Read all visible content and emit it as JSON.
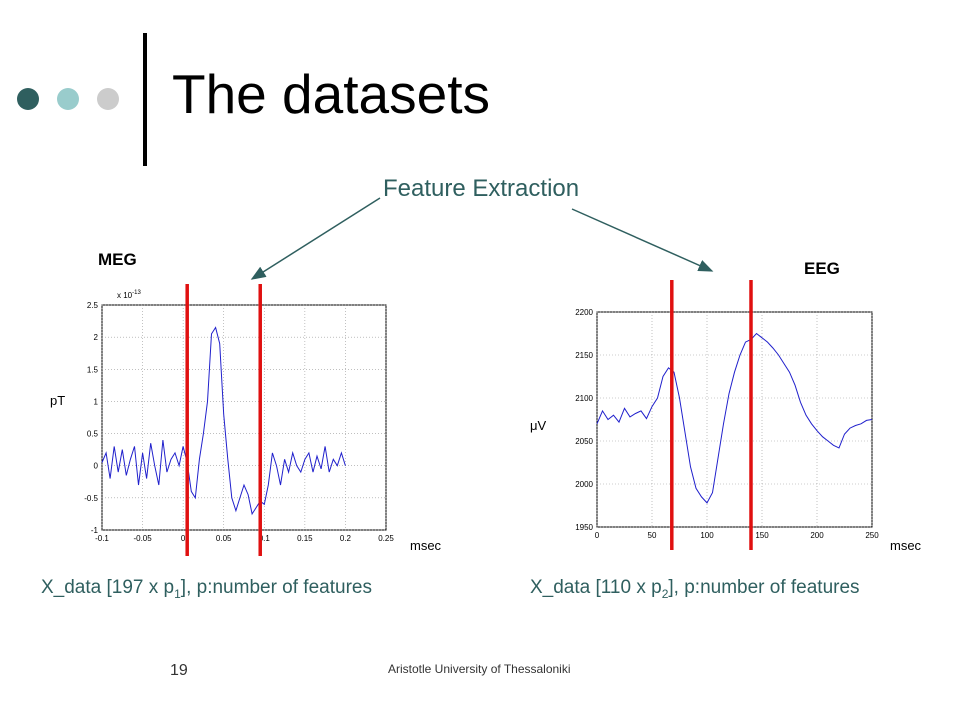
{
  "slide": {
    "title": "The datasets",
    "feature_label": "Feature Extraction",
    "footer": "Aristotle University of Thessaloniki",
    "page_number": "19",
    "colors": {
      "accent": "#2f5f5f",
      "dot1": "#2f5f5f",
      "dot2": "#99cccc",
      "dot3": "#cccccc",
      "marker": "#e01010",
      "trace": "#2020cc"
    }
  },
  "meg": {
    "label": "MEG",
    "unit": "pT",
    "xunit": "msec",
    "caption_pre": "X_data [197 x p",
    "caption_sub": "1",
    "caption_post": "], p:number of features",
    "scale_note": "x 10",
    "scale_exp": "-13"
  },
  "eeg": {
    "label": "EEG",
    "unit": "μV",
    "xunit": "msec",
    "caption_pre": "X_data [110 x p",
    "caption_sub": "2",
    "caption_post": "], p:number of features"
  },
  "chart_data": [
    {
      "type": "line",
      "title": "",
      "xlim": [
        -0.1,
        0.25
      ],
      "ylim": [
        -1,
        2.5
      ],
      "xticks": [
        "-0.1",
        "-0.05",
        "0",
        "0.05",
        "0.1",
        "0.15",
        "0.2",
        "0.25"
      ],
      "yticks": [
        "-1",
        "-0.5",
        "0",
        "0.5",
        "1",
        "1.5",
        "2",
        "2.5"
      ],
      "grid": true,
      "markers_x": [
        0.005,
        0.095
      ],
      "series": [
        {
          "x": [
            -0.1,
            -0.095,
            -0.09,
            -0.085,
            -0.08,
            -0.075,
            -0.07,
            -0.065,
            -0.06,
            -0.055,
            -0.05,
            -0.045,
            -0.04,
            -0.035,
            -0.03,
            -0.025,
            -0.02,
            -0.015,
            -0.01,
            -0.005,
            0,
            0.005,
            0.01,
            0.015,
            0.02,
            0.025,
            0.03,
            0.035,
            0.04,
            0.045,
            0.05,
            0.055,
            0.06,
            0.065,
            0.07,
            0.075,
            0.08,
            0.085,
            0.09,
            0.095,
            0.1,
            0.105,
            0.11,
            0.115,
            0.12,
            0.125,
            0.13,
            0.135,
            0.14,
            0.145,
            0.15,
            0.155,
            0.16,
            0.165,
            0.17,
            0.175,
            0.18,
            0.185,
            0.19,
            0.195,
            0.2
          ],
          "values": [
            0.05,
            0.2,
            -0.2,
            0.3,
            -0.1,
            0.25,
            -0.15,
            0.1,
            0.3,
            -0.3,
            0.2,
            -0.2,
            0.35,
            0.0,
            -0.3,
            0.4,
            -0.1,
            0.1,
            0.2,
            0.0,
            0.3,
            0.05,
            -0.4,
            -0.5,
            0.1,
            0.5,
            1.0,
            2.05,
            2.15,
            1.9,
            0.8,
            0.1,
            -0.5,
            -0.7,
            -0.5,
            -0.3,
            -0.45,
            -0.75,
            -0.65,
            -0.55,
            -0.6,
            -0.3,
            0.2,
            0.0,
            -0.3,
            0.1,
            -0.1,
            0.2,
            0.0,
            -0.1,
            0.1,
            0.2,
            -0.1,
            0.15,
            -0.05,
            0.3,
            -0.1,
            0.1,
            0.0,
            0.2,
            0.0
          ]
        }
      ]
    },
    {
      "type": "line",
      "title": "",
      "xlim": [
        0,
        250
      ],
      "ylim": [
        1950,
        2200
      ],
      "xticks": [
        "0",
        "50",
        "100",
        "150",
        "200",
        "250"
      ],
      "yticks": [
        "1950",
        "2000",
        "2050",
        "2100",
        "2150",
        "2200"
      ],
      "grid": true,
      "markers_x": [
        68,
        140
      ],
      "series": [
        {
          "x": [
            0,
            5,
            10,
            15,
            20,
            25,
            30,
            35,
            40,
            45,
            50,
            55,
            60,
            65,
            70,
            75,
            80,
            85,
            90,
            95,
            100,
            105,
            110,
            115,
            120,
            125,
            130,
            135,
            140,
            145,
            150,
            155,
            160,
            165,
            170,
            175,
            180,
            185,
            190,
            195,
            200,
            205,
            210,
            215,
            220,
            225,
            230,
            235,
            240,
            245,
            250
          ],
          "values": [
            2070,
            2085,
            2075,
            2080,
            2072,
            2088,
            2078,
            2082,
            2085,
            2076,
            2090,
            2100,
            2125,
            2135,
            2130,
            2100,
            2060,
            2020,
            1995,
            1985,
            1978,
            1990,
            2030,
            2070,
            2105,
            2130,
            2150,
            2165,
            2168,
            2175,
            2170,
            2165,
            2158,
            2150,
            2140,
            2130,
            2115,
            2095,
            2080,
            2070,
            2062,
            2055,
            2050,
            2045,
            2042,
            2058,
            2065,
            2068,
            2070,
            2074,
            2075
          ]
        }
      ]
    }
  ]
}
